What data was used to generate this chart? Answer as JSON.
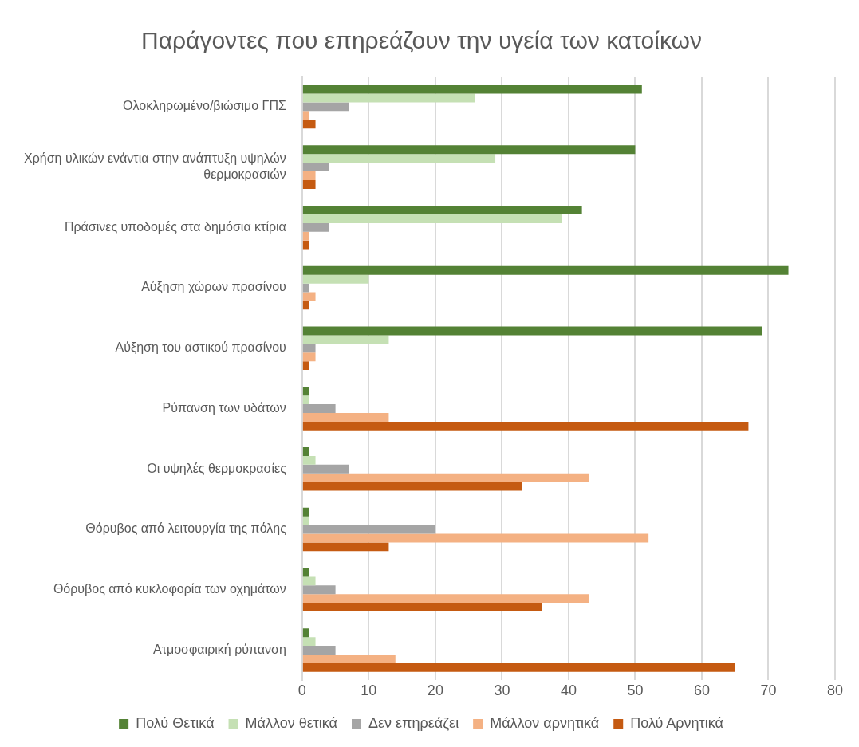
{
  "chart_data": {
    "type": "bar",
    "orientation": "horizontal",
    "title": "Παράγοντες που επηρεάζουν την υγεία των κατοίκων",
    "categories": [
      "Ολοκληρωμένο/βιώσιμο ΓΠΣ",
      "Χρήση υλικών ενάντια στην ανάπτυξη υψηλών θερμοκρασιών",
      "Πράσινες υποδομές στα δημόσια κτίρια",
      "Αύξηση χώρων πρασίνου",
      "Αύξηση του αστικού πρασίνου",
      "Ρύπανση των υδάτων",
      "Οι υψηλές θερμοκρασίες",
      "Θόρυβος από λειτουργία της πόλης",
      "Θόρυβος από κυκλοφορία των οχημάτων",
      "Ατμοσφαιρική ρύπανση"
    ],
    "series": [
      {
        "name": "Πολύ Θετικά",
        "color": "#548235",
        "values": [
          51,
          50,
          42,
          73,
          69,
          1,
          1,
          1,
          1,
          1
        ]
      },
      {
        "name": "Μάλλον θετικά",
        "color": "#c5e0b4",
        "values": [
          26,
          29,
          39,
          10,
          13,
          1,
          2,
          1,
          2,
          2
        ]
      },
      {
        "name": "Δεν επηρεάζει",
        "color": "#a5a5a5",
        "values": [
          7,
          4,
          4,
          1,
          2,
          5,
          7,
          20,
          5,
          5
        ]
      },
      {
        "name": "Μάλλον αρνητικά",
        "color": "#f4b183",
        "values": [
          1,
          2,
          1,
          2,
          2,
          13,
          43,
          52,
          43,
          14
        ]
      },
      {
        "name": "Πολύ Αρνητικά",
        "color": "#c55a11",
        "values": [
          2,
          2,
          1,
          1,
          1,
          67,
          33,
          13,
          36,
          65
        ]
      }
    ],
    "xlim": [
      0,
      80
    ],
    "xticks": [
      0,
      10,
      20,
      30,
      40,
      50,
      60,
      70,
      80
    ],
    "grid": "x",
    "legend": "bottom"
  }
}
